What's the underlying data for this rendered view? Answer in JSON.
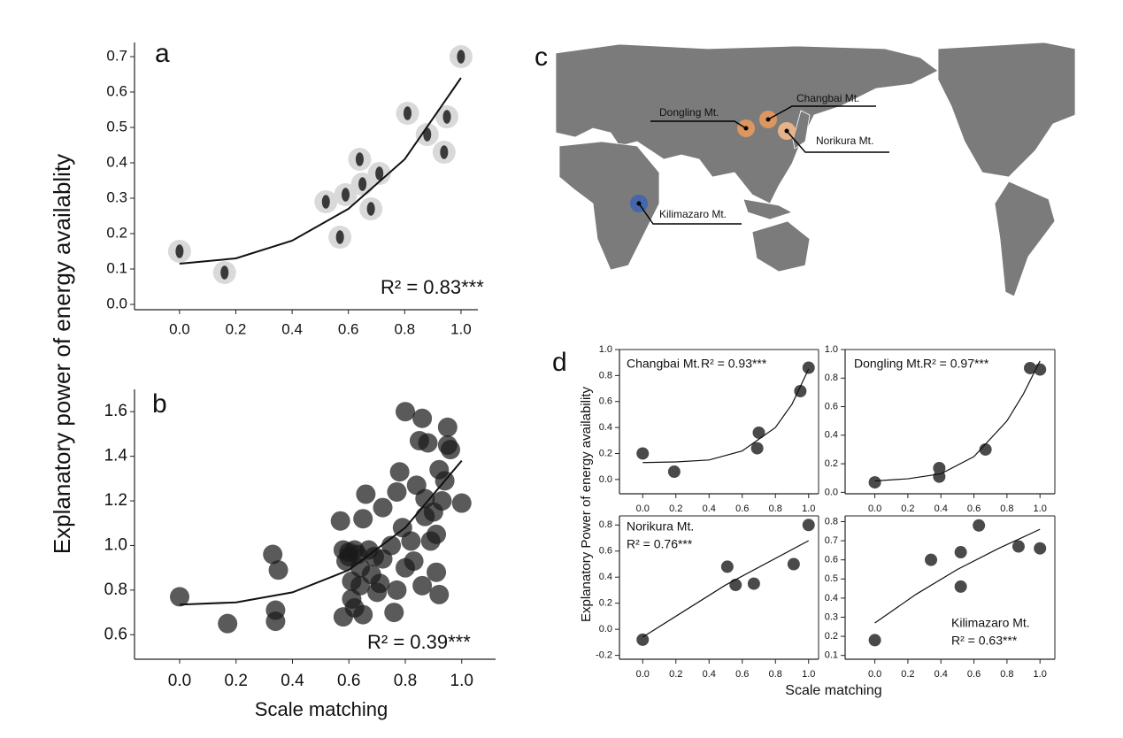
{
  "chart_data": [
    {
      "type": "scatter",
      "panel_label": "a",
      "marker": "icon",
      "color": "#3a3a3a",
      "y_label": "Explanatory power of energy availablity",
      "annotation": "R² = 0.83***",
      "x": [
        0.0,
        0.16,
        0.57,
        0.52,
        0.59,
        0.64,
        0.65,
        0.71,
        0.68,
        0.81,
        0.88,
        0.95,
        0.94,
        1.0
      ],
      "values": [
        0.15,
        0.09,
        0.19,
        0.29,
        0.31,
        0.41,
        0.34,
        0.37,
        0.27,
        0.54,
        0.48,
        0.53,
        0.43,
        0.7
      ],
      "fit": {
        "x": [
          0,
          0.2,
          0.4,
          0.6,
          0.8,
          1.0
        ],
        "values": [
          0.115,
          0.13,
          0.18,
          0.27,
          0.41,
          0.64
        ]
      },
      "xlim": [
        -0.16,
        1.06
      ],
      "ylim": [
        -0.015,
        0.74
      ],
      "xticks": [
        {
          "value": 0,
          "label": "0.0"
        },
        0.2,
        0.4,
        0.6,
        0.8,
        {
          "value": 1,
          "label": "1.0"
        }
      ],
      "yticks": [
        {
          "value": 0,
          "label": "0.0"
        },
        0.1,
        0.2,
        0.3,
        0.4,
        0.5,
        0.6,
        0.7
      ]
    },
    {
      "type": "scatter",
      "panel_label": "b",
      "marker": "circle",
      "color": "#1a1a1a",
      "x_label": "Scale matching",
      "annotation": "R² = 0.39***",
      "x": [
        0.0,
        0.17,
        0.33,
        0.34,
        0.34,
        0.35,
        0.57,
        0.58,
        0.58,
        0.59,
        0.6,
        0.61,
        0.61,
        0.62,
        0.63,
        0.64,
        0.64,
        0.65,
        0.65,
        0.66,
        0.67,
        0.68,
        0.69,
        0.7,
        0.71,
        0.72,
        0.72,
        0.75,
        0.76,
        0.77,
        0.77,
        0.78,
        0.79,
        0.8,
        0.8,
        0.82,
        0.83,
        0.84,
        0.85,
        0.86,
        0.86,
        0.87,
        0.87,
        0.88,
        0.89,
        0.9,
        0.91,
        0.91,
        0.92,
        0.92,
        0.93,
        0.94,
        0.95,
        0.95,
        0.96,
        1.0,
        0.6,
        0.62
      ],
      "values": [
        0.77,
        0.65,
        0.96,
        0.71,
        0.66,
        0.89,
        1.11,
        0.98,
        0.68,
        0.93,
        0.97,
        0.84,
        0.76,
        0.72,
        0.96,
        0.9,
        0.82,
        1.12,
        0.69,
        1.23,
        0.98,
        0.87,
        0.95,
        0.79,
        0.83,
        1.17,
        0.94,
        1.0,
        0.7,
        1.24,
        0.8,
        1.33,
        1.08,
        1.6,
        0.9,
        1.02,
        0.93,
        1.27,
        1.47,
        1.57,
        0.82,
        1.21,
        1.13,
        1.46,
        1.02,
        1.15,
        0.88,
        1.05,
        0.78,
        1.34,
        1.2,
        1.29,
        1.53,
        1.45,
        1.43,
        1.19,
        0.95,
        0.98
      ],
      "fit": {
        "x": [
          0,
          0.2,
          0.4,
          0.6,
          0.8,
          1.0
        ],
        "values": [
          0.735,
          0.745,
          0.79,
          0.89,
          1.08,
          1.38
        ]
      },
      "xlim": [
        -0.16,
        1.12
      ],
      "ylim": [
        0.49,
        1.7
      ],
      "xticks": [
        {
          "value": 0,
          "label": "0.0"
        },
        0.2,
        0.4,
        0.6,
        0.8,
        {
          "value": 1,
          "label": "1.0"
        }
      ],
      "yticks": [
        0.6,
        0.8,
        {
          "value": 1,
          "label": "1.0"
        },
        1.2,
        1.4,
        1.6
      ]
    },
    {
      "type": "scatter",
      "panel_label": "d",
      "marker": "circle",
      "color": "#4a4a4a",
      "title": "Changbai Mt.",
      "annotation": "R² = 0.93***",
      "y_label": "Explanatory Power of energy availability",
      "x": [
        0,
        0.19,
        0.69,
        0.7,
        0.95,
        1.0
      ],
      "values": [
        0.2,
        0.06,
        0.24,
        0.36,
        0.68,
        0.86
      ],
      "fit": {
        "x": [
          0,
          0.2,
          0.4,
          0.6,
          0.8,
          0.9,
          1.0
        ],
        "values": [
          0.13,
          0.135,
          0.15,
          0.22,
          0.4,
          0.58,
          0.85
        ]
      },
      "xlim": [
        -0.14,
        1.06
      ],
      "ylim": [
        -0.11,
        1.0
      ],
      "xticks": [
        {
          "value": 0,
          "label": "0.0"
        },
        0.2,
        0.4,
        0.6,
        0.8,
        {
          "value": 1,
          "label": "1.0"
        }
      ],
      "yticks": [
        {
          "value": 0,
          "label": "0.0"
        },
        0.2,
        0.4,
        0.6,
        0.8,
        {
          "value": 1,
          "label": "1.0"
        }
      ]
    },
    {
      "type": "scatter",
      "marker": "circle",
      "color": "#4a4a4a",
      "title": "Dongling Mt.",
      "annotation": "R² = 0.97***",
      "x": [
        0,
        0.39,
        0.39,
        0.67,
        0.94,
        1.0
      ],
      "values": [
        0.07,
        0.11,
        0.17,
        0.3,
        0.87,
        0.86
      ],
      "fit": {
        "x": [
          0,
          0.2,
          0.4,
          0.6,
          0.8,
          0.9,
          1.0
        ],
        "values": [
          0.08,
          0.095,
          0.13,
          0.25,
          0.5,
          0.69,
          0.92
        ]
      },
      "xlim": [
        -0.18,
        1.09
      ],
      "ylim": [
        -0.01,
        1.0
      ],
      "xticks": [
        {
          "value": 0,
          "label": "0.0"
        },
        0.2,
        0.4,
        0.6,
        0.8,
        {
          "value": 1,
          "label": "1.0"
        }
      ],
      "yticks": [
        {
          "value": 0,
          "label": "0.0"
        },
        0.2,
        0.4,
        0.6,
        0.8,
        {
          "value": 1,
          "label": "1.0"
        }
      ]
    },
    {
      "type": "scatter",
      "marker": "circle",
      "color": "#4a4a4a",
      "title": "Norikura Mt.",
      "annotation": "R² = 0.76***",
      "x_label": "Scale matching",
      "x": [
        0,
        0.51,
        0.56,
        0.67,
        0.91,
        1.0
      ],
      "values": [
        -0.08,
        0.48,
        0.34,
        0.35,
        0.5,
        0.8
      ],
      "fit": {
        "x": [
          0,
          0.5,
          1.0
        ],
        "values": [
          -0.06,
          0.34,
          0.68
        ]
      },
      "xlim": [
        -0.14,
        1.06
      ],
      "ylim": [
        -0.23,
        0.87
      ],
      "xticks": [
        {
          "value": 0,
          "label": "0.0"
        },
        0.2,
        0.4,
        0.6,
        0.8,
        {
          "value": 1,
          "label": "1.0"
        }
      ],
      "yticks": [
        -0.2,
        {
          "value": 0,
          "label": "0.0"
        },
        0.2,
        0.4,
        0.6,
        0.8
      ]
    },
    {
      "type": "scatter",
      "marker": "circle",
      "color": "#4a4a4a",
      "title": "Kilimazaro Mt.",
      "annotation": "R² = 0.63***",
      "x": [
        0,
        0.34,
        0.52,
        0.52,
        0.63,
        0.87,
        1.0
      ],
      "values": [
        0.18,
        0.6,
        0.64,
        0.46,
        0.78,
        0.67,
        0.66
      ],
      "fit": {
        "x": [
          0,
          0.25,
          0.5,
          0.75,
          1.0
        ],
        "values": [
          0.27,
          0.42,
          0.55,
          0.66,
          0.76
        ]
      },
      "xlim": [
        -0.18,
        1.09
      ],
      "ylim": [
        0.08,
        0.83
      ],
      "xticks": [
        {
          "value": 0,
          "label": "0.0"
        },
        0.2,
        0.4,
        0.6,
        0.8,
        {
          "value": 1,
          "label": "1.0"
        }
      ],
      "yticks": [
        0.1,
        0.2,
        0.3,
        0.4,
        0.5,
        0.6,
        0.7,
        0.8
      ]
    }
  ],
  "map": {
    "panel_label": "c",
    "sites": [
      {
        "label": "Dongling Mt.",
        "color": "#e8995c"
      },
      {
        "label": "Changbai Mt.",
        "color": "#e8995c"
      },
      {
        "label": "Norikura Mt.",
        "color": "#f2b98a"
      },
      {
        "label": "Kilimazaro Mt.",
        "color": "#3f64b0"
      }
    ]
  }
}
